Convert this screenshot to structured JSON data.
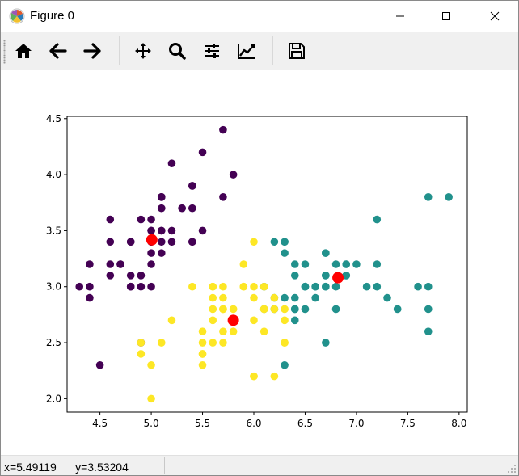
{
  "window": {
    "title": "Figure 0",
    "controls": [
      "minimize-icon",
      "maximize-icon",
      "close-icon"
    ]
  },
  "toolbar": {
    "tools": [
      {
        "name": "home",
        "icon": "home-icon"
      },
      {
        "name": "back",
        "icon": "arrow-left-icon"
      },
      {
        "name": "forward",
        "icon": "arrow-right-icon"
      },
      {
        "name": "pan",
        "icon": "move-icon"
      },
      {
        "name": "zoom",
        "icon": "magnifier-icon"
      },
      {
        "name": "configure-subplots",
        "icon": "sliders-icon"
      },
      {
        "name": "edit-axis",
        "icon": "line-chart-icon"
      },
      {
        "name": "save",
        "icon": "floppy-disk-icon"
      }
    ]
  },
  "status": {
    "x_readout": "x=5.49119",
    "y_readout": "y=3.53204"
  },
  "chart_data": {
    "type": "scatter",
    "title": "",
    "xlabel": "",
    "ylabel": "",
    "xlim": [
      4.18,
      8.08
    ],
    "ylim": [
      1.88,
      4.52
    ],
    "x_ticks": [
      "4.5",
      "5.0",
      "5.5",
      "6.0",
      "6.5",
      "7.0",
      "7.5",
      "8.0"
    ],
    "y_ticks": [
      "2.0",
      "2.5",
      "3.0",
      "3.5",
      "4.0",
      "4.5"
    ],
    "grid": false,
    "colors": {
      "cluster0": "#440154",
      "cluster1": "#21918c",
      "cluster2": "#fde725",
      "centroid": "#ff0000"
    },
    "series": [
      {
        "color": "#440154",
        "points": [
          [
            5.1,
            3.5
          ],
          [
            4.9,
            3.0
          ],
          [
            4.7,
            3.2
          ],
          [
            4.6,
            3.1
          ],
          [
            5.0,
            3.6
          ],
          [
            5.4,
            3.9
          ],
          [
            4.6,
            3.4
          ],
          [
            5.0,
            3.4
          ],
          [
            4.4,
            2.9
          ],
          [
            4.9,
            3.1
          ],
          [
            5.4,
            3.7
          ],
          [
            4.8,
            3.4
          ],
          [
            4.8,
            3.0
          ],
          [
            4.3,
            3.0
          ],
          [
            5.8,
            4.0
          ],
          [
            5.7,
            4.4
          ],
          [
            5.4,
            3.9
          ],
          [
            5.1,
            3.5
          ],
          [
            5.7,
            3.8
          ],
          [
            5.1,
            3.8
          ],
          [
            5.4,
            3.4
          ],
          [
            5.1,
            3.7
          ],
          [
            4.6,
            3.6
          ],
          [
            5.1,
            3.3
          ],
          [
            4.8,
            3.4
          ],
          [
            5.0,
            3.0
          ],
          [
            5.0,
            3.4
          ],
          [
            5.2,
            3.5
          ],
          [
            5.2,
            3.4
          ],
          [
            4.7,
            3.2
          ],
          [
            4.8,
            3.1
          ],
          [
            5.4,
            3.4
          ],
          [
            5.2,
            4.1
          ],
          [
            5.5,
            4.2
          ],
          [
            4.9,
            3.1
          ],
          [
            5.0,
            3.2
          ],
          [
            5.5,
            3.5
          ],
          [
            4.9,
            3.6
          ],
          [
            4.4,
            3.0
          ],
          [
            5.1,
            3.4
          ],
          [
            5.0,
            3.5
          ],
          [
            4.5,
            2.3
          ],
          [
            4.4,
            3.2
          ],
          [
            5.0,
            3.5
          ],
          [
            5.1,
            3.8
          ],
          [
            4.8,
            3.0
          ],
          [
            5.1,
            3.8
          ],
          [
            4.6,
            3.2
          ],
          [
            5.3,
            3.7
          ],
          [
            5.0,
            3.3
          ],
          [
            4.9,
            2.5
          ]
        ]
      },
      {
        "color": "#21918c",
        "points": [
          [
            7.0,
            3.2
          ],
          [
            6.4,
            3.2
          ],
          [
            6.9,
            3.1
          ],
          [
            6.5,
            2.8
          ],
          [
            6.3,
            3.3
          ],
          [
            6.6,
            2.9
          ],
          [
            6.7,
            3.1
          ],
          [
            6.2,
            2.9
          ],
          [
            6.1,
            3.0
          ],
          [
            6.6,
            3.0
          ],
          [
            6.8,
            2.8
          ],
          [
            6.7,
            3.0
          ],
          [
            6.7,
            3.1
          ],
          [
            6.3,
            2.3
          ],
          [
            6.4,
            2.9
          ],
          [
            6.4,
            2.8
          ],
          [
            6.3,
            3.4
          ],
          [
            6.2,
            3.4
          ],
          [
            6.8,
            3.2
          ],
          [
            6.7,
            3.3
          ],
          [
            6.7,
            3.0
          ],
          [
            6.5,
            3.0
          ],
          [
            6.4,
            3.1
          ],
          [
            6.9,
            3.1
          ],
          [
            6.9,
            3.2
          ],
          [
            6.7,
            2.5
          ],
          [
            7.1,
            3.0
          ],
          [
            7.6,
            3.0
          ],
          [
            7.3,
            2.9
          ],
          [
            7.2,
            3.6
          ],
          [
            6.5,
            3.2
          ],
          [
            6.4,
            2.7
          ],
          [
            6.8,
            3.0
          ],
          [
            7.7,
            3.8
          ],
          [
            7.7,
            2.6
          ],
          [
            6.9,
            3.2
          ],
          [
            7.7,
            2.8
          ],
          [
            6.7,
            3.3
          ],
          [
            7.2,
            3.2
          ],
          [
            7.4,
            2.8
          ],
          [
            7.9,
            3.8
          ],
          [
            6.4,
            2.8
          ],
          [
            7.7,
            3.0
          ],
          [
            6.3,
            3.4
          ],
          [
            6.9,
            3.1
          ],
          [
            6.7,
            3.1
          ],
          [
            6.5,
            3.0
          ],
          [
            7.2,
            3.0
          ],
          [
            6.6,
            3.0
          ],
          [
            6.5,
            3.0
          ],
          [
            6.3,
            2.9
          ],
          [
            6.2,
            2.8
          ],
          [
            6.1,
            2.8
          ]
        ]
      },
      {
        "color": "#fde725",
        "points": [
          [
            5.5,
            2.3
          ],
          [
            5.7,
            2.8
          ],
          [
            4.9,
            2.4
          ],
          [
            5.2,
            2.7
          ],
          [
            5.0,
            2.0
          ],
          [
            5.9,
            3.0
          ],
          [
            6.0,
            2.2
          ],
          [
            5.6,
            2.9
          ],
          [
            5.6,
            3.0
          ],
          [
            5.8,
            2.7
          ],
          [
            6.2,
            2.2
          ],
          [
            5.6,
            2.5
          ],
          [
            5.9,
            3.2
          ],
          [
            6.1,
            2.8
          ],
          [
            6.3,
            2.5
          ],
          [
            6.1,
            2.8
          ],
          [
            6.0,
            2.9
          ],
          [
            5.7,
            2.6
          ],
          [
            5.5,
            2.4
          ],
          [
            5.5,
            2.4
          ],
          [
            5.8,
            2.7
          ],
          [
            6.0,
            2.7
          ],
          [
            5.4,
            3.0
          ],
          [
            6.0,
            3.4
          ],
          [
            5.6,
            3.0
          ],
          [
            5.5,
            2.5
          ],
          [
            5.5,
            2.6
          ],
          [
            6.1,
            3.0
          ],
          [
            5.8,
            2.6
          ],
          [
            5.0,
            2.3
          ],
          [
            5.6,
            2.7
          ],
          [
            5.7,
            3.0
          ],
          [
            5.7,
            2.9
          ],
          [
            6.2,
            2.9
          ],
          [
            5.1,
            2.5
          ],
          [
            5.7,
            2.8
          ],
          [
            5.8,
            2.7
          ],
          [
            4.9,
            2.5
          ],
          [
            5.7,
            2.5
          ],
          [
            5.8,
            2.8
          ],
          [
            6.0,
            3.0
          ],
          [
            5.6,
            2.8
          ],
          [
            6.3,
            2.7
          ],
          [
            6.2,
            2.8
          ],
          [
            6.1,
            2.6
          ],
          [
            6.3,
            2.8
          ],
          [
            6.3,
            2.5
          ],
          [
            6.0,
            2.2
          ],
          [
            5.9,
            3.0
          ],
          [
            5.8,
            2.7
          ]
        ]
      },
      {
        "color": "#ff0000",
        "role": "centroids",
        "points": [
          [
            5.006,
            3.418
          ],
          [
            6.82,
            3.08
          ],
          [
            5.8,
            2.7
          ]
        ]
      }
    ]
  }
}
